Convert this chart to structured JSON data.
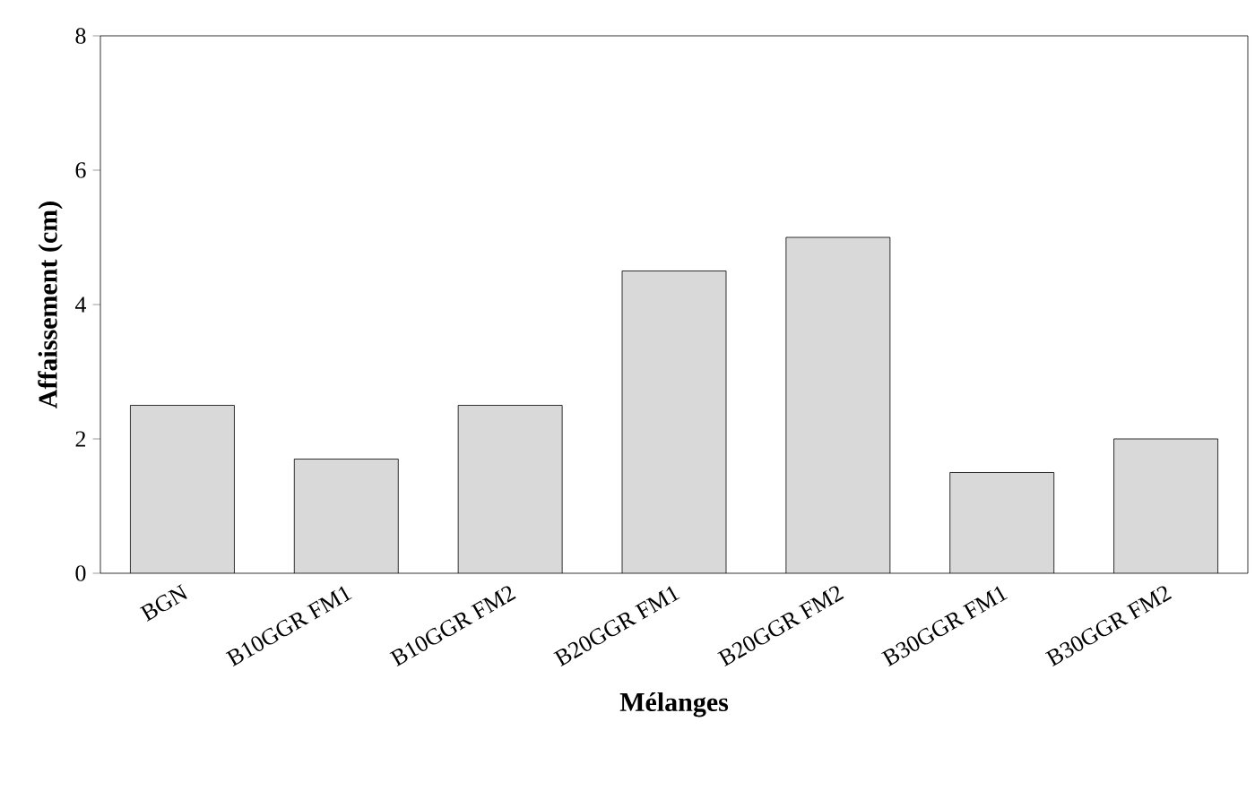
{
  "chart_data": {
    "type": "bar",
    "xlabel": "Mélanges",
    "ylabel": "Affaissement (cm)",
    "categories": [
      "BGN",
      "B10GGR FM1",
      "B10GGR FM2",
      "B20GGR FM1",
      "B20GGR FM2",
      "B30GGR FM1",
      "B30GGR FM2"
    ],
    "values": [
      2.5,
      1.7,
      2.5,
      4.5,
      5.0,
      1.5,
      2.0
    ],
    "color": "#d9d9d9",
    "ylim": [
      0,
      8
    ],
    "yticks": [
      0,
      2,
      4,
      6,
      8
    ],
    "grid": false
  }
}
